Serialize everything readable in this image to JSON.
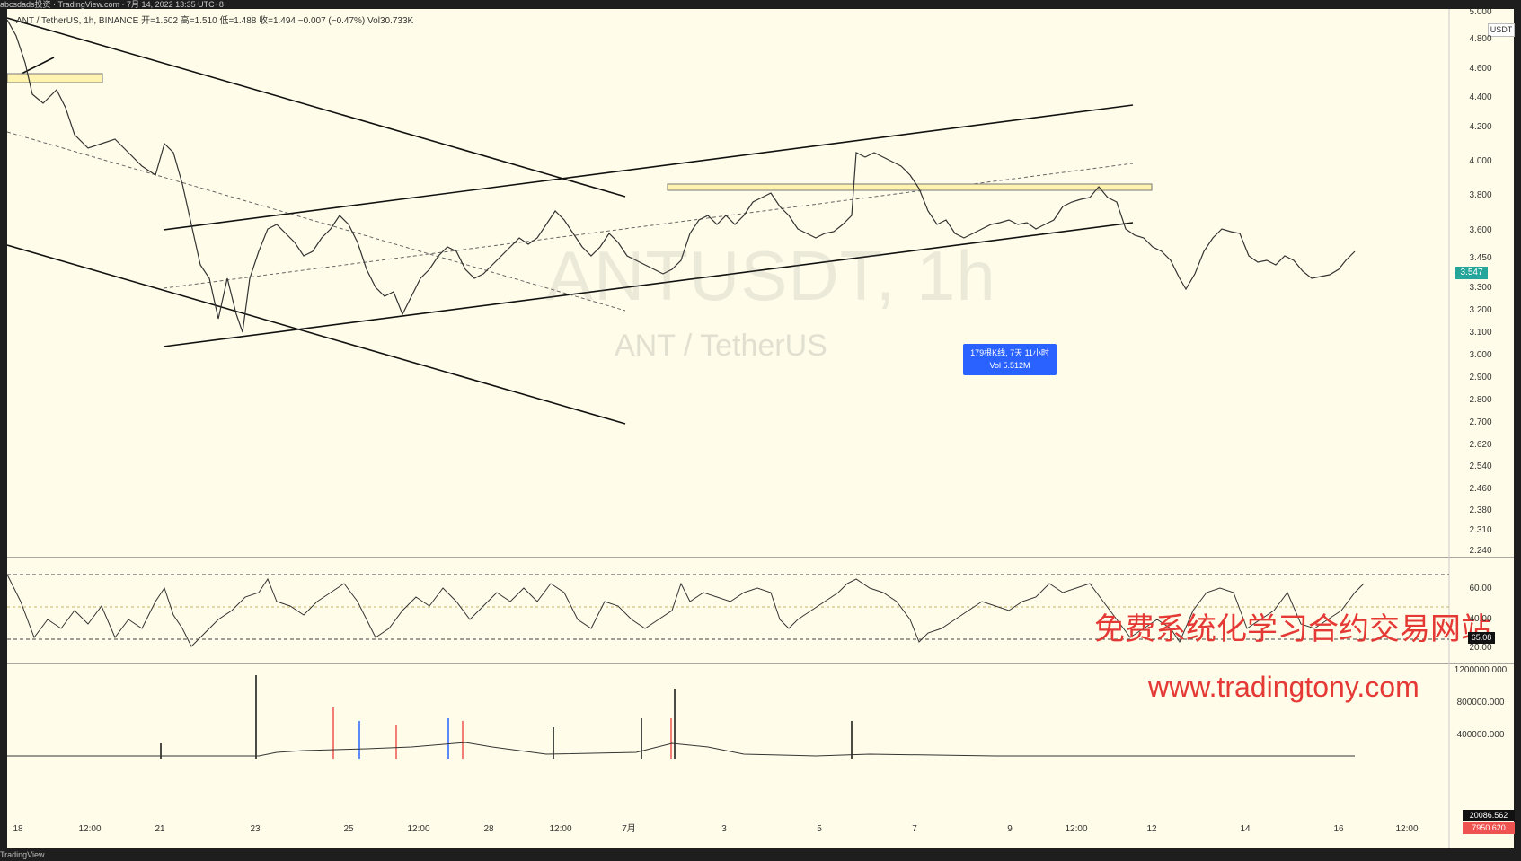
{
  "topbar": {
    "text": "abcsdads投资 · TradingView.com · 7月 14, 2022 13:35 UTC+8"
  },
  "legend": {
    "symbol": "ANT / TetherUS, 1h, BINANCE",
    "open": "开=1.502",
    "high": "高=1.510",
    "low": "低=1.488",
    "close": "收=1.494",
    "change": "−0.007 (−0.47%)",
    "vol": "Vol30.733K"
  },
  "watermark": {
    "ticker": "ANTUSDT, 1h",
    "name": "ANT / TetherUS"
  },
  "promo": {
    "line1": "免费系统化学习合约交易网站",
    "line2": "www.tradingtony.com"
  },
  "range_tooltip": {
    "line1": "179根K线, 7天 11小时",
    "line2": "Vol 5.512M"
  },
  "price_axis": {
    "currency": "USDT",
    "last_price": "3.547",
    "ticks": [
      "5.000",
      "4.800",
      "4.600",
      "4.400",
      "4.200",
      "4.000",
      "3.800",
      "3.600",
      "3.450",
      "3.300",
      "3.200",
      "3.100",
      "3.000",
      "2.900",
      "2.800",
      "2.700",
      "2.620",
      "2.540",
      "2.460",
      "2.380",
      "2.310",
      "2.240"
    ]
  },
  "rsi_axis": {
    "last": "65.08",
    "ticks": [
      "60.00",
      "40.00",
      "20.00"
    ]
  },
  "volume_axis": {
    "ticks": [
      "1200000.000",
      "800000.000",
      "400000.000"
    ],
    "tag1": "20086.562",
    "tag2": "7950.620"
  },
  "time_axis": {
    "ticks": [
      "18",
      "12:00",
      "21",
      "23",
      "25",
      "12:00",
      "28",
      "12:00",
      "7月",
      "3",
      "5",
      "7",
      "9",
      "12:00",
      "12",
      "14",
      "16",
      "12:00"
    ]
  },
  "bottombar": {
    "text": "TradingView"
  },
  "colors": {
    "background": "#fffde9",
    "up": "#26a69a",
    "down": "#ef5350",
    "range": "#2962ff",
    "zone": "#fff3b0"
  },
  "chart_data": [
    {
      "type": "candlestick",
      "title": "ANT / TetherUS, 1h, BINANCE",
      "ylim": [
        2.24,
        5.0
      ],
      "x_ticks": [
        "18",
        "12:00",
        "21",
        "23",
        "25",
        "12:00",
        "28",
        "12:00",
        "7月",
        "3",
        "5",
        "7",
        "9",
        "12:00",
        "12",
        "14",
        "16",
        "12:00"
      ],
      "last": 3.547
    },
    {
      "type": "line",
      "name": "RSI",
      "ylim": [
        20,
        80
      ],
      "last": 65.08
    },
    {
      "type": "bar",
      "name": "Volume",
      "ylim": [
        0,
        1200000
      ],
      "last": [
        20086.562,
        7950.62
      ]
    }
  ]
}
